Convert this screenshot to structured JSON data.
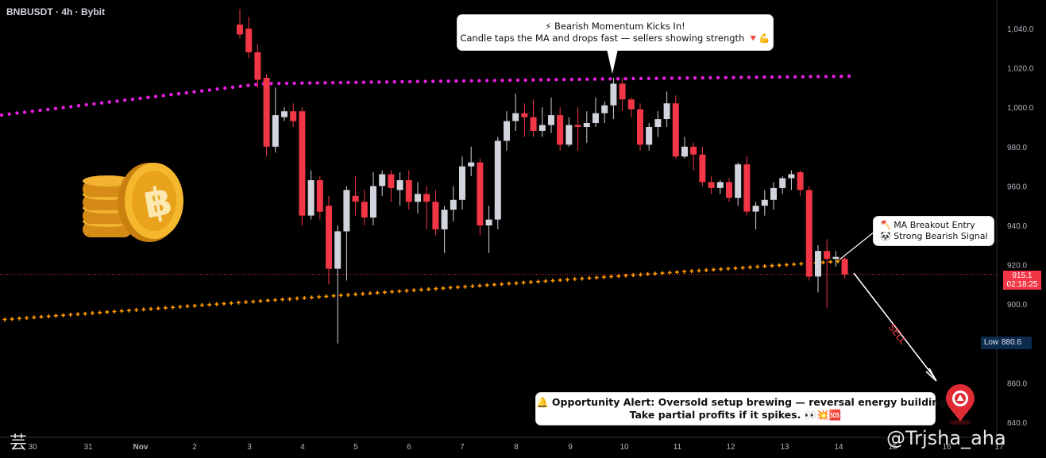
{
  "symbol_title": "BNBUSDT · 4h · Bybit",
  "watermark": "@Trjsha_aha",
  "corner_glyph": "芸",
  "colors": {
    "bull": "#d1d4dc",
    "bear": "#f23645",
    "ma_fast": "#e81ee0",
    "ma_slow": "#ff9800",
    "price_line": "#f23645",
    "axis_text": "#b2b5be"
  },
  "callouts": {
    "top_line1": "⚡ Bearish Momentum Kicks In!",
    "top_line2": "Candle taps the MA and drops fast — sellers showing strength 🔻💪",
    "right_line1": "🪓 MA Breakout Entry",
    "right_line2": "🐼 Strong Bearish Signal",
    "bottom_line1": "🔔 Opportunity Alert: Oversold setup brewing — reversal energy building!",
    "bottom_line2": "Take partial profits if it spikes. 👀💥🆘"
  },
  "sell_label": "SELL",
  "current_price": {
    "value": "915.1",
    "countdown": "02:18:25"
  },
  "low_marker": {
    "label": "Low",
    "value": "880.6"
  },
  "icons": [
    "bitcoin-coin-stack-icon",
    "alert-pin-icon"
  ],
  "chart_data": {
    "type": "candlestick",
    "title": "",
    "interval": "4h",
    "ylim": [
      835,
      1050
    ],
    "y_ticks": [
      840,
      860,
      880,
      900,
      920,
      940,
      960,
      980,
      1000,
      1020,
      1040
    ],
    "y_tick_labels": [
      "840.0",
      "860.0",
      "880.0",
      "900.0",
      "920.0",
      "940.0",
      "960.0",
      "980.0",
      "1,000.0",
      "1,020.0",
      "1,040.0"
    ],
    "x_ticks": [
      "30",
      "31",
      "Nov",
      "2",
      "3",
      "4",
      "5",
      "6",
      "7",
      "8",
      "9",
      "10",
      "11",
      "12",
      "13",
      "14",
      "15",
      "16",
      "17"
    ],
    "grid": false,
    "candles": [
      {
        "o": 1042,
        "h": 1050,
        "l": 1035,
        "c": 1037
      },
      {
        "o": 1040,
        "h": 1046,
        "l": 1025,
        "c": 1028
      },
      {
        "o": 1028,
        "h": 1032,
        "l": 1010,
        "c": 1014
      },
      {
        "o": 1015,
        "h": 1017,
        "l": 975,
        "c": 980
      },
      {
        "o": 980,
        "h": 1010,
        "l": 977,
        "c": 996
      },
      {
        "o": 995,
        "h": 1000,
        "l": 993,
        "c": 998
      },
      {
        "o": 998,
        "h": 1002,
        "l": 990,
        "c": 993
      },
      {
        "o": 998,
        "h": 1000,
        "l": 940,
        "c": 945
      },
      {
        "o": 945,
        "h": 968,
        "l": 943,
        "c": 963
      },
      {
        "o": 963,
        "h": 965,
        "l": 943,
        "c": 947
      },
      {
        "o": 950,
        "h": 955,
        "l": 910,
        "c": 918
      },
      {
        "o": 918,
        "h": 940,
        "l": 880,
        "c": 937
      },
      {
        "o": 937,
        "h": 960,
        "l": 912,
        "c": 958
      },
      {
        "o": 955,
        "h": 965,
        "l": 945,
        "c": 952
      },
      {
        "o": 952,
        "h": 958,
        "l": 940,
        "c": 944
      },
      {
        "o": 944,
        "h": 967,
        "l": 940,
        "c": 960
      },
      {
        "o": 960,
        "h": 968,
        "l": 955,
        "c": 966
      },
      {
        "o": 966,
        "h": 968,
        "l": 952,
        "c": 959
      },
      {
        "o": 958,
        "h": 967,
        "l": 950,
        "c": 963
      },
      {
        "o": 963,
        "h": 968,
        "l": 948,
        "c": 952
      },
      {
        "o": 952,
        "h": 962,
        "l": 946,
        "c": 956
      },
      {
        "o": 956,
        "h": 960,
        "l": 938,
        "c": 952
      },
      {
        "o": 952,
        "h": 958,
        "l": 935,
        "c": 938
      },
      {
        "o": 938,
        "h": 950,
        "l": 926,
        "c": 948
      },
      {
        "o": 948,
        "h": 960,
        "l": 942,
        "c": 953
      },
      {
        "o": 953,
        "h": 975,
        "l": 948,
        "c": 970
      },
      {
        "o": 970,
        "h": 980,
        "l": 965,
        "c": 972
      },
      {
        "o": 972,
        "h": 974,
        "l": 935,
        "c": 940
      },
      {
        "o": 940,
        "h": 950,
        "l": 926,
        "c": 943
      },
      {
        "o": 943,
        "h": 985,
        "l": 938,
        "c": 983
      },
      {
        "o": 983,
        "h": 998,
        "l": 978,
        "c": 993
      },
      {
        "o": 993,
        "h": 1007,
        "l": 988,
        "c": 997
      },
      {
        "o": 997,
        "h": 1002,
        "l": 985,
        "c": 995
      },
      {
        "o": 995,
        "h": 1004,
        "l": 985,
        "c": 988
      },
      {
        "o": 988,
        "h": 1000,
        "l": 985,
        "c": 991
      },
      {
        "o": 991,
        "h": 1005,
        "l": 987,
        "c": 996
      },
      {
        "o": 996,
        "h": 1000,
        "l": 978,
        "c": 981
      },
      {
        "o": 981,
        "h": 995,
        "l": 980,
        "c": 991
      },
      {
        "o": 991,
        "h": 1000,
        "l": 978,
        "c": 990
      },
      {
        "o": 990,
        "h": 998,
        "l": 982,
        "c": 992
      },
      {
        "o": 992,
        "h": 1005,
        "l": 990,
        "c": 997
      },
      {
        "o": 997,
        "h": 1003,
        "l": 992,
        "c": 1001
      },
      {
        "o": 1001,
        "h": 1015,
        "l": 994,
        "c": 1012
      },
      {
        "o": 1012,
        "h": 1015,
        "l": 998,
        "c": 1004
      },
      {
        "o": 1004,
        "h": 1005,
        "l": 995,
        "c": 999
      },
      {
        "o": 999,
        "h": 1002,
        "l": 978,
        "c": 981
      },
      {
        "o": 981,
        "h": 992,
        "l": 978,
        "c": 990
      },
      {
        "o": 990,
        "h": 998,
        "l": 985,
        "c": 994
      },
      {
        "o": 994,
        "h": 1008,
        "l": 990,
        "c": 1002
      },
      {
        "o": 1002,
        "h": 1006,
        "l": 974,
        "c": 975
      },
      {
        "o": 975,
        "h": 985,
        "l": 974,
        "c": 980
      },
      {
        "o": 980,
        "h": 982,
        "l": 968,
        "c": 976
      },
      {
        "o": 976,
        "h": 980,
        "l": 960,
        "c": 962
      },
      {
        "o": 962,
        "h": 965,
        "l": 956,
        "c": 959
      },
      {
        "o": 959,
        "h": 963,
        "l": 956,
        "c": 962
      },
      {
        "o": 962,
        "h": 964,
        "l": 952,
        "c": 954
      },
      {
        "o": 954,
        "h": 972,
        "l": 950,
        "c": 971
      },
      {
        "o": 971,
        "h": 975,
        "l": 945,
        "c": 947
      },
      {
        "o": 947,
        "h": 952,
        "l": 938,
        "c": 950
      },
      {
        "o": 950,
        "h": 958,
        "l": 945,
        "c": 953
      },
      {
        "o": 953,
        "h": 962,
        "l": 948,
        "c": 959
      },
      {
        "o": 959,
        "h": 965,
        "l": 956,
        "c": 964
      },
      {
        "o": 964,
        "h": 968,
        "l": 958,
        "c": 966
      },
      {
        "o": 967,
        "h": 968,
        "l": 955,
        "c": 958
      },
      {
        "o": 958,
        "h": 960,
        "l": 912,
        "c": 914
      },
      {
        "o": 914,
        "h": 930,
        "l": 906,
        "c": 927
      },
      {
        "o": 927,
        "h": 933,
        "l": 898,
        "c": 923
      },
      {
        "o": 923,
        "h": 927,
        "l": 919,
        "c": 924
      },
      {
        "o": 923,
        "h": 924,
        "l": 913,
        "c": 915.1
      }
    ],
    "series": [
      {
        "name": "",
        "style": "dotted",
        "x": [
          0,
          10,
          20,
          30,
          40,
          50,
          60,
          70,
          75
        ],
        "values": [
          996,
          1001,
          1008,
          1012,
          1013,
          1015,
          1016,
          1016,
          1015.5
        ]
      },
      {
        "name": "",
        "style": "cross",
        "x": [
          0,
          10,
          20,
          30,
          40,
          50,
          60,
          68
        ],
        "values": [
          892,
          898,
          905,
          909,
          913,
          916,
          919,
          921.5
        ]
      }
    ]
  }
}
